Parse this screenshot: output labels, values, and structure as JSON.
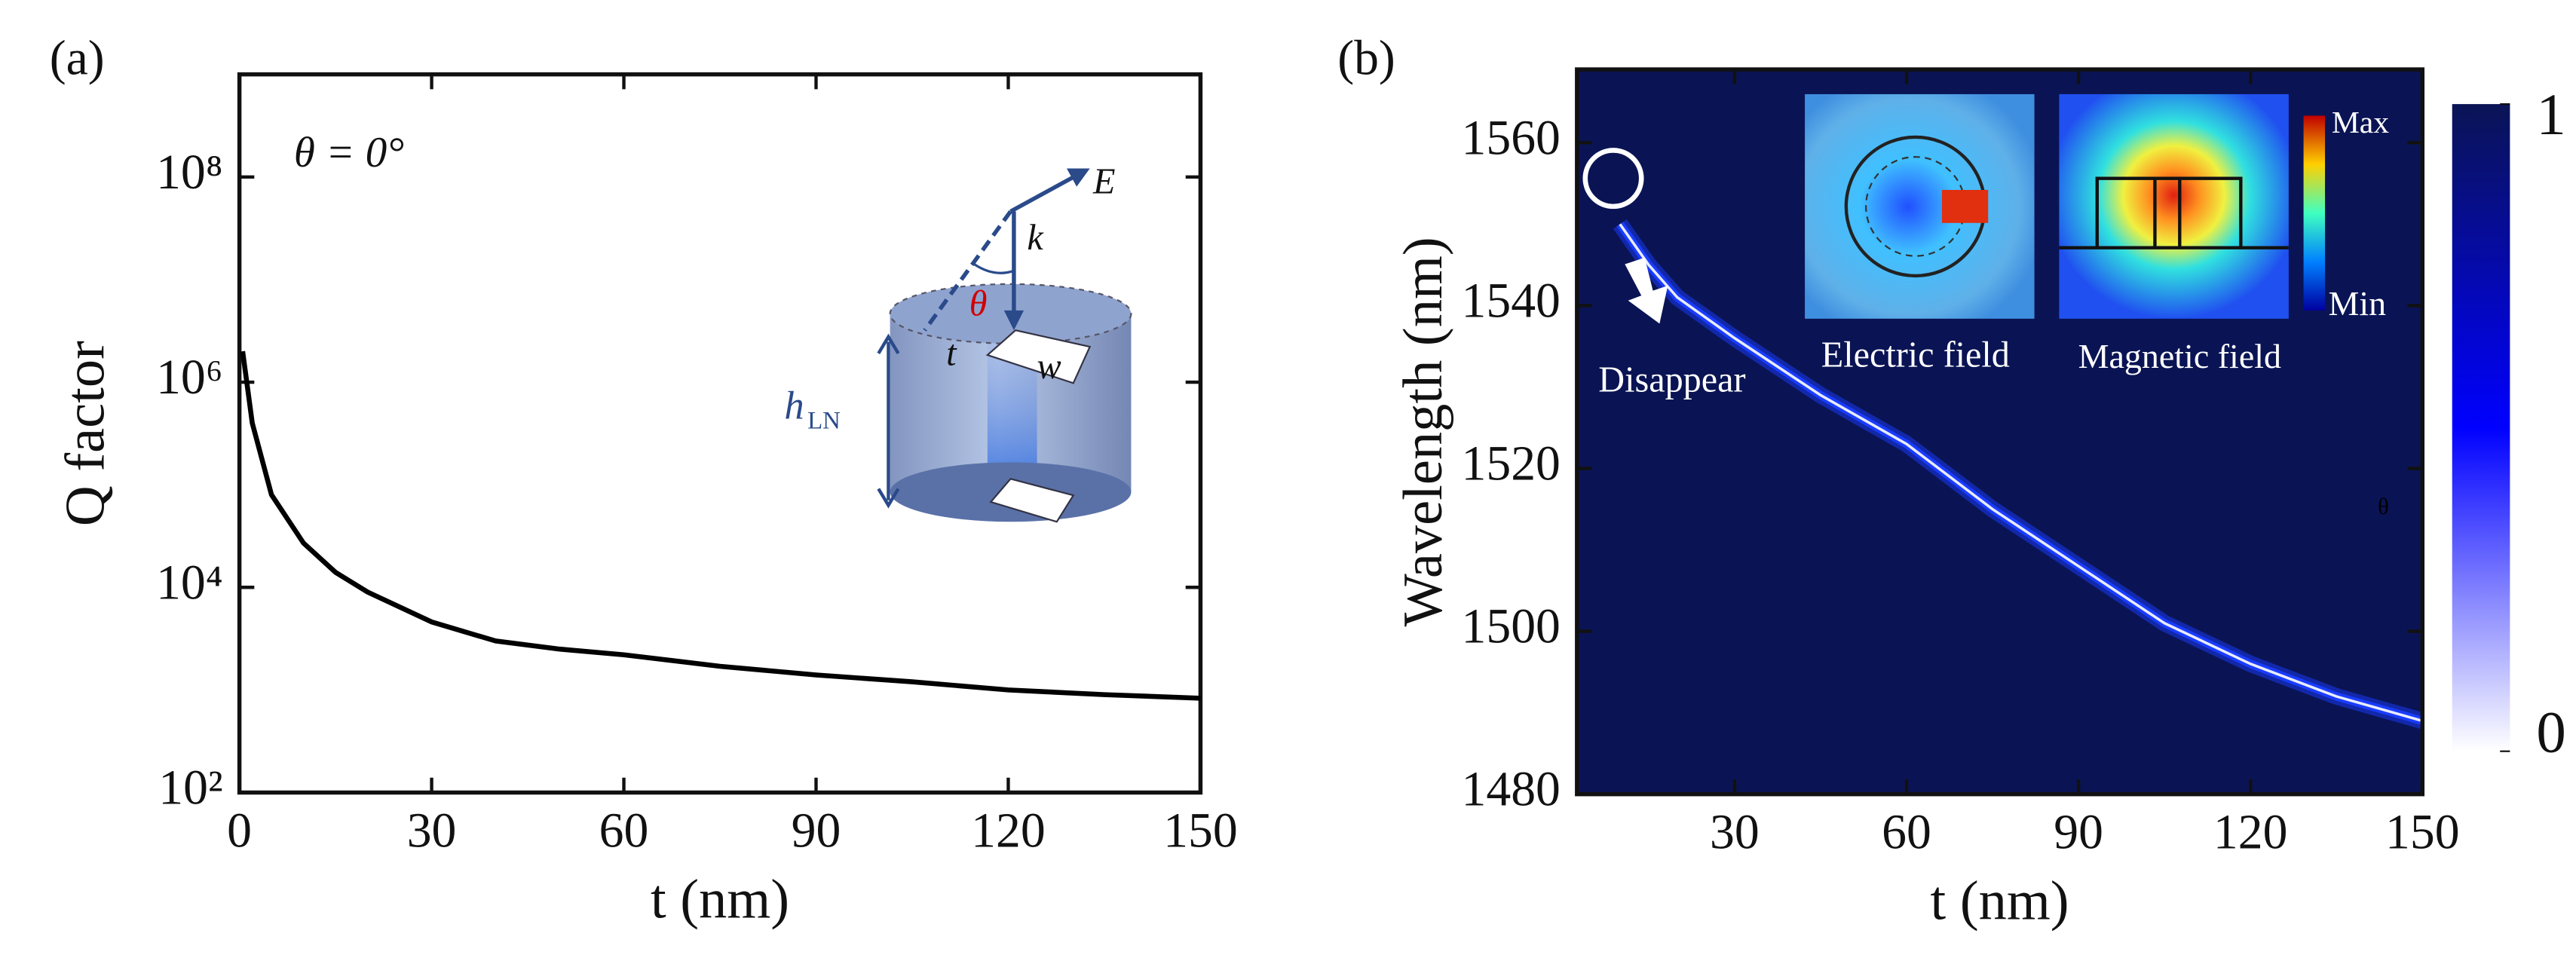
{
  "chart_data": [
    {
      "type": "line",
      "panel_label": "(a)",
      "xlabel": "t (nm)",
      "ylabel": "Q factor",
      "log_y": true,
      "xlim": [
        0,
        150
      ],
      "xticks": [
        0,
        30,
        60,
        90,
        120,
        150
      ],
      "ylim": [
        100,
        1000000000
      ],
      "yticks": [
        {
          "value": 100,
          "label": "10²"
        },
        {
          "value": 10000,
          "label": "10⁴"
        },
        {
          "value": 1000000,
          "label": "10⁶"
        },
        {
          "value": 100000000,
          "label": "10⁸"
        }
      ],
      "x": [
        0.5,
        2,
        5,
        10,
        15,
        20,
        30,
        40,
        50,
        60,
        75,
        90,
        105,
        120,
        135,
        150
      ],
      "values": [
        2000000,
        400000,
        80000,
        27000,
        14000,
        9000,
        4600,
        3000,
        2500,
        2200,
        1700,
        1400,
        1200,
        1000,
        900,
        830
      ],
      "color": "#000000",
      "annotations": {
        "angle": "θ = 0°",
        "e": "E",
        "k": "k",
        "theta": "θ",
        "t": "t",
        "w": "w",
        "h": "h",
        "h_sub": "LN"
      }
    },
    {
      "type": "heatmap",
      "panel_label": "(b)",
      "xlabel": "t (nm)",
      "ylabel": "Wavelength (nm)",
      "xlim": [
        2.5,
        150
      ],
      "xticks": [
        30,
        60,
        90,
        120,
        150
      ],
      "ylim": [
        1480,
        1569
      ],
      "yticks": [
        1480,
        1500,
        1520,
        1540,
        1560
      ],
      "background": "#0a1454",
      "ridge": {
        "x": [
          10,
          15,
          20,
          30,
          45,
          60,
          75,
          90,
          105,
          120,
          135,
          150
        ],
        "values": [
          1550,
          1545,
          1541,
          1536,
          1529,
          1523,
          1515,
          1508,
          1501,
          1496,
          1492,
          1489
        ],
        "color": "#1a3cff"
      },
      "colorbar": {
        "lim": [
          0,
          1
        ],
        "ticks": [
          0,
          1
        ],
        "colors": [
          "#ffffff",
          "#0000ff",
          "#0a1454"
        ]
      },
      "annotations": {
        "disappear": "Disappear",
        "electric": "Electric field",
        "magnetic": "Magnetic field",
        "max": "Max",
        "min": "Min",
        "stray": "θ"
      }
    }
  ]
}
